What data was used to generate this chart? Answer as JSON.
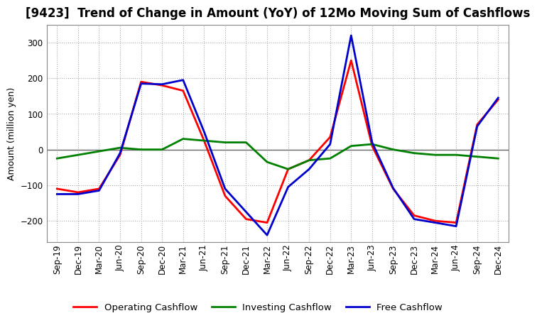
{
  "title": "[9423]  Trend of Change in Amount (YoY) of 12Mo Moving Sum of Cashflows",
  "ylabel": "Amount (million yen)",
  "x_labels": [
    "Sep-19",
    "Dec-19",
    "Mar-20",
    "Jun-20",
    "Sep-20",
    "Dec-20",
    "Mar-21",
    "Jun-21",
    "Sep-21",
    "Dec-21",
    "Mar-22",
    "Jun-22",
    "Sep-22",
    "Dec-22",
    "Mar-23",
    "Jun-23",
    "Sep-23",
    "Dec-23",
    "Mar-24",
    "Jun-24",
    "Sep-24",
    "Dec-24"
  ],
  "operating": [
    -110,
    -120,
    -110,
    -15,
    190,
    180,
    165,
    25,
    -130,
    -195,
    -205,
    -55,
    -30,
    35,
    250,
    10,
    -110,
    -185,
    -200,
    -205,
    70,
    140
  ],
  "investing": [
    -25,
    -15,
    -5,
    5,
    0,
    0,
    30,
    25,
    20,
    20,
    -35,
    -55,
    -30,
    -25,
    10,
    15,
    0,
    -10,
    -15,
    -15,
    -20,
    -25
  ],
  "free": [
    -125,
    -125,
    -115,
    -10,
    185,
    183,
    195,
    50,
    -110,
    -175,
    -240,
    -105,
    -55,
    15,
    320,
    20,
    -108,
    -195,
    -205,
    -215,
    65,
    145
  ],
  "ylim": [
    -260,
    350
  ],
  "yticks": [
    -200,
    -100,
    0,
    100,
    200,
    300
  ],
  "operating_color": "#ff0000",
  "investing_color": "#008000",
  "free_color": "#0000cc",
  "background_color": "#ffffff",
  "grid_color": "#aaaaaa",
  "zero_line_color": "#666666",
  "title_fontsize": 12,
  "axis_fontsize": 9,
  "tick_fontsize": 8.5,
  "legend_fontsize": 9.5,
  "linewidth": 2.0
}
